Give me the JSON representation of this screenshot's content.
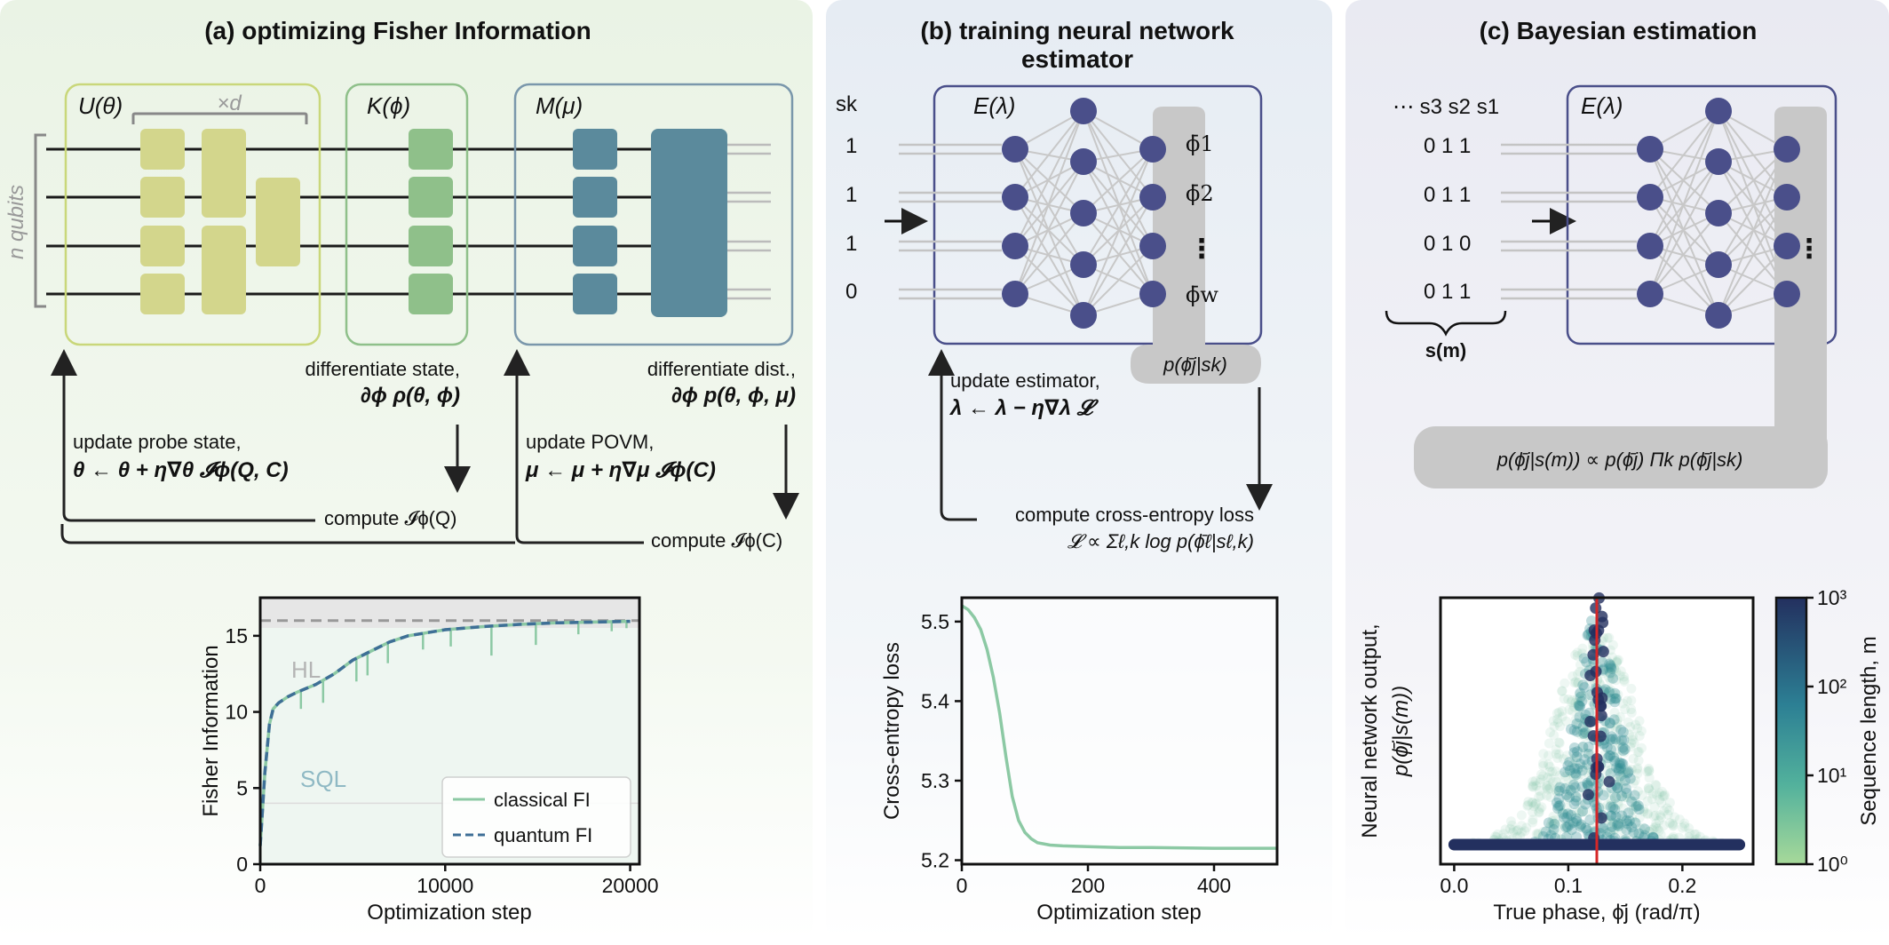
{
  "panel_a": {
    "title": "(a) optimizing Fisher Information",
    "box_u_label": "U(θ)",
    "box_k_label": "K(ϕ)",
    "box_m_label": "M(μ)",
    "depth_label": "×d",
    "qubits_label": "n qubits",
    "diff_state_line1": "differentiate state,",
    "diff_state_line2": "∂ϕ ρ(θ, ϕ)",
    "diff_dist_line1": "differentiate dist.,",
    "diff_dist_line2": "∂ϕ p(θ, ϕ, μ)",
    "update_probe_line1": "update probe state,",
    "update_probe_line2": "θ ← θ + η∇θ 𝓘ϕ(Q, C)",
    "update_povm_line1": "update POVM,",
    "update_povm_line2": "μ ← μ + η∇μ 𝓘ϕ(C)",
    "compute_q": "compute 𝓘ϕ(Q)",
    "compute_c": "compute 𝓘ϕ(C)"
  },
  "panel_b": {
    "title_line1": "(b) training neural network",
    "title_line2": "estimator",
    "input_header": "sk",
    "inputs": [
      "1",
      "1",
      "1",
      "0"
    ],
    "net_label": "E(λ)",
    "outputs": [
      "ϕ̄1",
      "ϕ̄2",
      "⋮",
      "ϕ̄w"
    ],
    "output_dist": "p(ϕ̄j|sk)",
    "update_line1": "update estimator,",
    "update_line2": "λ ← λ − η∇λ 𝓛",
    "loss_line1": "compute cross-entropy loss",
    "loss_line2": "𝓛 ∝ Σℓ,k log p(ϕ̄ℓ|sℓ,k)"
  },
  "panel_c": {
    "title": "(c) Bayesian estimation",
    "seq_header": "⋯ s3 s2 s1",
    "rows": [
      "0 1 1",
      "0 1 1",
      "0 1 0",
      "0 1 1"
    ],
    "brace_label": "s(m)",
    "net_label": "E(λ)",
    "output_dots": "⋮",
    "posterior": "p(ϕ̄j|s(m)) ∝ p(ϕ̄j) Πk p(ϕ̄j|sk)"
  },
  "colors": {
    "panel_a_bg": "#eef5ea",
    "panel_b_bg": "#e9eef4",
    "panel_c_bg": "#ecedf3",
    "u_gate": "#d3d68c",
    "k_gate": "#8fc08a",
    "m_gate": "#5b8a9c",
    "node": "#4a4f8a",
    "net_box": "#4a4f8a",
    "classical": "#8cc9a4",
    "quantum": "#3e6f96"
  },
  "chart_data": [
    {
      "type": "line",
      "xlabel": "Optimization step",
      "ylabel": "Fisher Information",
      "xlim": [
        0,
        20500
      ],
      "ylim": [
        0,
        17.5
      ],
      "xticks": [
        "0",
        "10000",
        "20000"
      ],
      "yticks": [
        "0",
        "5",
        "10",
        "15"
      ],
      "annotations": [
        "HL",
        "SQL"
      ],
      "hl_value": 16,
      "sql_value": 4,
      "legend_position": "bottom-right",
      "series": [
        {
          "name": "classical FI",
          "x": [
            0,
            250,
            500,
            700,
            1000,
            1500,
            2000,
            3000,
            4000,
            5000,
            6000,
            7000,
            8000,
            9000,
            10000,
            12000,
            14000,
            16000,
            18000,
            20000
          ],
          "values": [
            1.2,
            6.0,
            9.2,
            10.2,
            10.6,
            11.0,
            11.3,
            11.8,
            12.5,
            13.4,
            14.0,
            14.6,
            15.0,
            15.2,
            15.4,
            15.6,
            15.75,
            15.85,
            15.9,
            15.95
          ]
        },
        {
          "name": "quantum FI",
          "x": [
            0,
            250,
            500,
            700,
            1000,
            1500,
            2000,
            3000,
            4000,
            5000,
            6000,
            7000,
            8000,
            9000,
            10000,
            12000,
            14000,
            16000,
            18000,
            20000
          ],
          "values": [
            1.2,
            6.0,
            9.2,
            10.2,
            10.6,
            11.0,
            11.3,
            11.8,
            12.5,
            13.4,
            14.0,
            14.6,
            15.0,
            15.2,
            15.4,
            15.6,
            15.75,
            15.85,
            15.9,
            15.95
          ]
        }
      ]
    },
    {
      "type": "line",
      "xlabel": "Optimization step",
      "ylabel": "Cross-entropy loss",
      "xlim": [
        0,
        500
      ],
      "ylim": [
        5.195,
        5.53
      ],
      "xticks": [
        "0",
        "200",
        "400"
      ],
      "yticks": [
        "5.2",
        "5.3",
        "5.4",
        "5.5"
      ],
      "series": [
        {
          "name": "",
          "x": [
            0,
            10,
            20,
            30,
            40,
            50,
            60,
            70,
            80,
            90,
            100,
            110,
            120,
            140,
            160,
            200,
            250,
            300,
            400,
            500
          ],
          "values": [
            5.52,
            5.515,
            5.505,
            5.49,
            5.465,
            5.43,
            5.385,
            5.33,
            5.28,
            5.25,
            5.235,
            5.227,
            5.222,
            5.219,
            5.218,
            5.217,
            5.216,
            5.216,
            5.215,
            5.215
          ]
        }
      ]
    },
    {
      "type": "scatter",
      "xlabel": "True phase, ϕ̄j (rad/π)",
      "ylabel_line1": "Neural network output,",
      "ylabel_line2": "p(ϕ̄j|s(m))",
      "xlim": [
        -0.012,
        0.262
      ],
      "xticks": [
        "0.0",
        "0.1",
        "0.2"
      ],
      "true_phase": 0.125,
      "colorbar": {
        "label": "Sequence length, m",
        "ticks": [
          "10⁰",
          "10¹",
          "10²",
          "10³"
        ],
        "scale": "log",
        "range": [
          1,
          1000
        ]
      }
    }
  ]
}
